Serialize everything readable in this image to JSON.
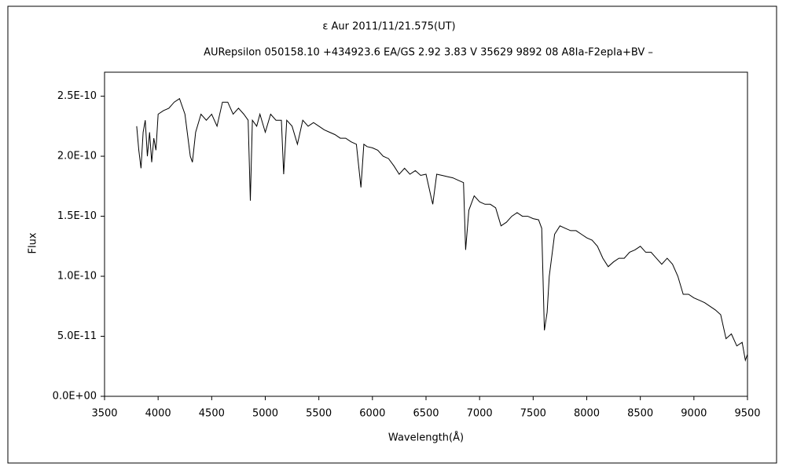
{
  "chart_data": {
    "type": "line",
    "title": "ε Aur   2011/11/21.575(UT)",
    "subtitle": "AURepsilon 050158.10 +434923.6 EA/GS 2.92 3.83 V 35629 9892 08 A8Ia-F2epIa+BV –",
    "xlabel": "Wavelength(Å)",
    "ylabel": "Flux",
    "color": "#000000",
    "grid": false,
    "xlim": [
      3500,
      9500
    ],
    "xticks": [
      3500,
      4000,
      4500,
      5000,
      5500,
      6000,
      6500,
      7000,
      7500,
      8000,
      8500,
      9000,
      9500
    ],
    "ylim": [
      0,
      2.7e-10
    ],
    "yticks": [
      {
        "value": 0,
        "label": "0.0E+00"
      },
      {
        "value": 5e-11,
        "label": "5.0E-11"
      },
      {
        "value": 1e-10,
        "label": "1.0E-10"
      },
      {
        "value": 1.5e-10,
        "label": "1.5E-10"
      },
      {
        "value": 2e-10,
        "label": "2.0E-10"
      },
      {
        "value": 2.5e-10,
        "label": "2.5E-10"
      }
    ],
    "x": [
      3800,
      3820,
      3840,
      3860,
      3880,
      3900,
      3920,
      3940,
      3960,
      3980,
      4000,
      4050,
      4100,
      4150,
      4200,
      4250,
      4300,
      4320,
      4350,
      4400,
      4450,
      4500,
      4550,
      4600,
      4650,
      4700,
      4750,
      4800,
      4840,
      4861,
      4880,
      4920,
      4950,
      5000,
      5050,
      5100,
      5150,
      5172,
      5200,
      5250,
      5300,
      5350,
      5400,
      5450,
      5500,
      5550,
      5600,
      5650,
      5700,
      5750,
      5800,
      5850,
      5893,
      5920,
      5950,
      6000,
      6050,
      6100,
      6150,
      6200,
      6250,
      6300,
      6350,
      6400,
      6450,
      6500,
      6550,
      6563,
      6600,
      6650,
      6700,
      6750,
      6800,
      6850,
      6870,
      6900,
      6950,
      7000,
      7050,
      7100,
      7150,
      7200,
      7250,
      7300,
      7350,
      7400,
      7450,
      7500,
      7550,
      7580,
      7605,
      7630,
      7650,
      7700,
      7750,
      7800,
      7850,
      7900,
      7950,
      8000,
      8050,
      8100,
      8150,
      8200,
      8250,
      8300,
      8350,
      8400,
      8450,
      8500,
      8550,
      8600,
      8650,
      8700,
      8750,
      8800,
      8850,
      8900,
      8950,
      9000,
      9050,
      9100,
      9150,
      9200,
      9250,
      9300,
      9350,
      9400,
      9450,
      9480,
      9500
    ],
    "values": [
      2.25e-10,
      2.05e-10,
      1.9e-10,
      2.2e-10,
      2.3e-10,
      2e-10,
      2.2e-10,
      1.95e-10,
      2.15e-10,
      2.05e-10,
      2.35e-10,
      2.38e-10,
      2.4e-10,
      2.45e-10,
      2.48e-10,
      2.35e-10,
      2e-10,
      1.95e-10,
      2.2e-10,
      2.35e-10,
      2.3e-10,
      2.35e-10,
      2.25e-10,
      2.45e-10,
      2.45e-10,
      2.35e-10,
      2.4e-10,
      2.35e-10,
      2.3e-10,
      1.63e-10,
      2.3e-10,
      2.25e-10,
      2.35e-10,
      2.2e-10,
      2.35e-10,
      2.3e-10,
      2.3e-10,
      1.85e-10,
      2.3e-10,
      2.25e-10,
      2.1e-10,
      2.3e-10,
      2.25e-10,
      2.28e-10,
      2.25e-10,
      2.22e-10,
      2.2e-10,
      2.18e-10,
      2.15e-10,
      2.15e-10,
      2.12e-10,
      2.1e-10,
      1.74e-10,
      2.1e-10,
      2.08e-10,
      2.07e-10,
      2.05e-10,
      2e-10,
      1.98e-10,
      1.92e-10,
      1.85e-10,
      1.9e-10,
      1.85e-10,
      1.88e-10,
      1.84e-10,
      1.85e-10,
      1.65e-10,
      1.6e-10,
      1.85e-10,
      1.84e-10,
      1.83e-10,
      1.82e-10,
      1.8e-10,
      1.78e-10,
      1.22e-10,
      1.55e-10,
      1.67e-10,
      1.62e-10,
      1.6e-10,
      1.6e-10,
      1.57e-10,
      1.42e-10,
      1.45e-10,
      1.5e-10,
      1.53e-10,
      1.5e-10,
      1.5e-10,
      1.48e-10,
      1.47e-10,
      1.4e-10,
      5.5e-11,
      7e-11,
      1e-10,
      1.35e-10,
      1.42e-10,
      1.4e-10,
      1.38e-10,
      1.38e-10,
      1.35e-10,
      1.32e-10,
      1.3e-10,
      1.25e-10,
      1.15e-10,
      1.08e-10,
      1.12e-10,
      1.15e-10,
      1.15e-10,
      1.2e-10,
      1.22e-10,
      1.25e-10,
      1.2e-10,
      1.2e-10,
      1.15e-10,
      1.1e-10,
      1.15e-10,
      1.1e-10,
      1e-10,
      8.5e-11,
      8.5e-11,
      8.2e-11,
      8e-11,
      7.8e-11,
      7.5e-11,
      7.2e-11,
      6.8e-11,
      4.8e-11,
      5.2e-11,
      4.2e-11,
      4.5e-11,
      3e-11,
      3.5e-11
    ]
  }
}
